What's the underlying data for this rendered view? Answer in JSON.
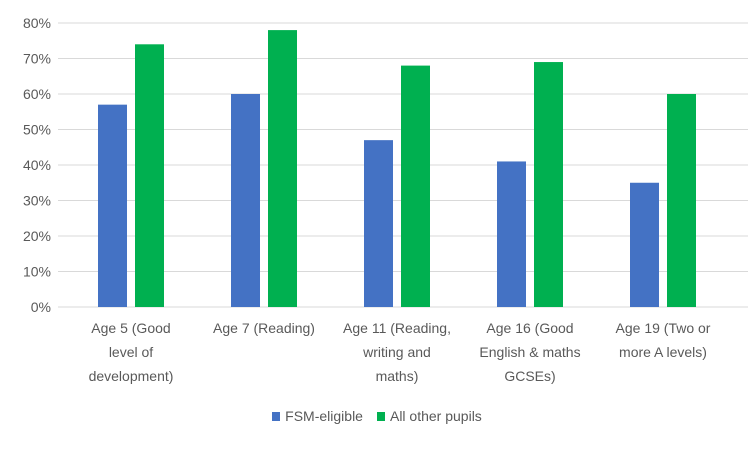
{
  "chart_data": {
    "type": "bar",
    "title": "",
    "xlabel": "",
    "ylabel": "",
    "ylim": [
      0,
      80
    ],
    "y_ticks": [
      "0%",
      "10%",
      "20%",
      "30%",
      "40%",
      "50%",
      "60%",
      "70%",
      "80%"
    ],
    "grid": true,
    "legend_position": "bottom",
    "categories": [
      [
        "Age 5 (Good",
        "level of",
        "development)"
      ],
      [
        "Age 7 (Reading)"
      ],
      [
        "Age 11 (Reading,",
        "writing and",
        "maths)"
      ],
      [
        "Age 16 (Good",
        "English & maths",
        "GCSEs)"
      ],
      [
        "Age 19 (Two or",
        "more A levels)"
      ]
    ],
    "series": [
      {
        "name": "FSM-eligible",
        "color": "#4472C4",
        "values": [
          57,
          60,
          47,
          41,
          35
        ]
      },
      {
        "name": "All other pupils",
        "color": "#00B050",
        "values": [
          74,
          78,
          68,
          69,
          60
        ]
      }
    ]
  }
}
